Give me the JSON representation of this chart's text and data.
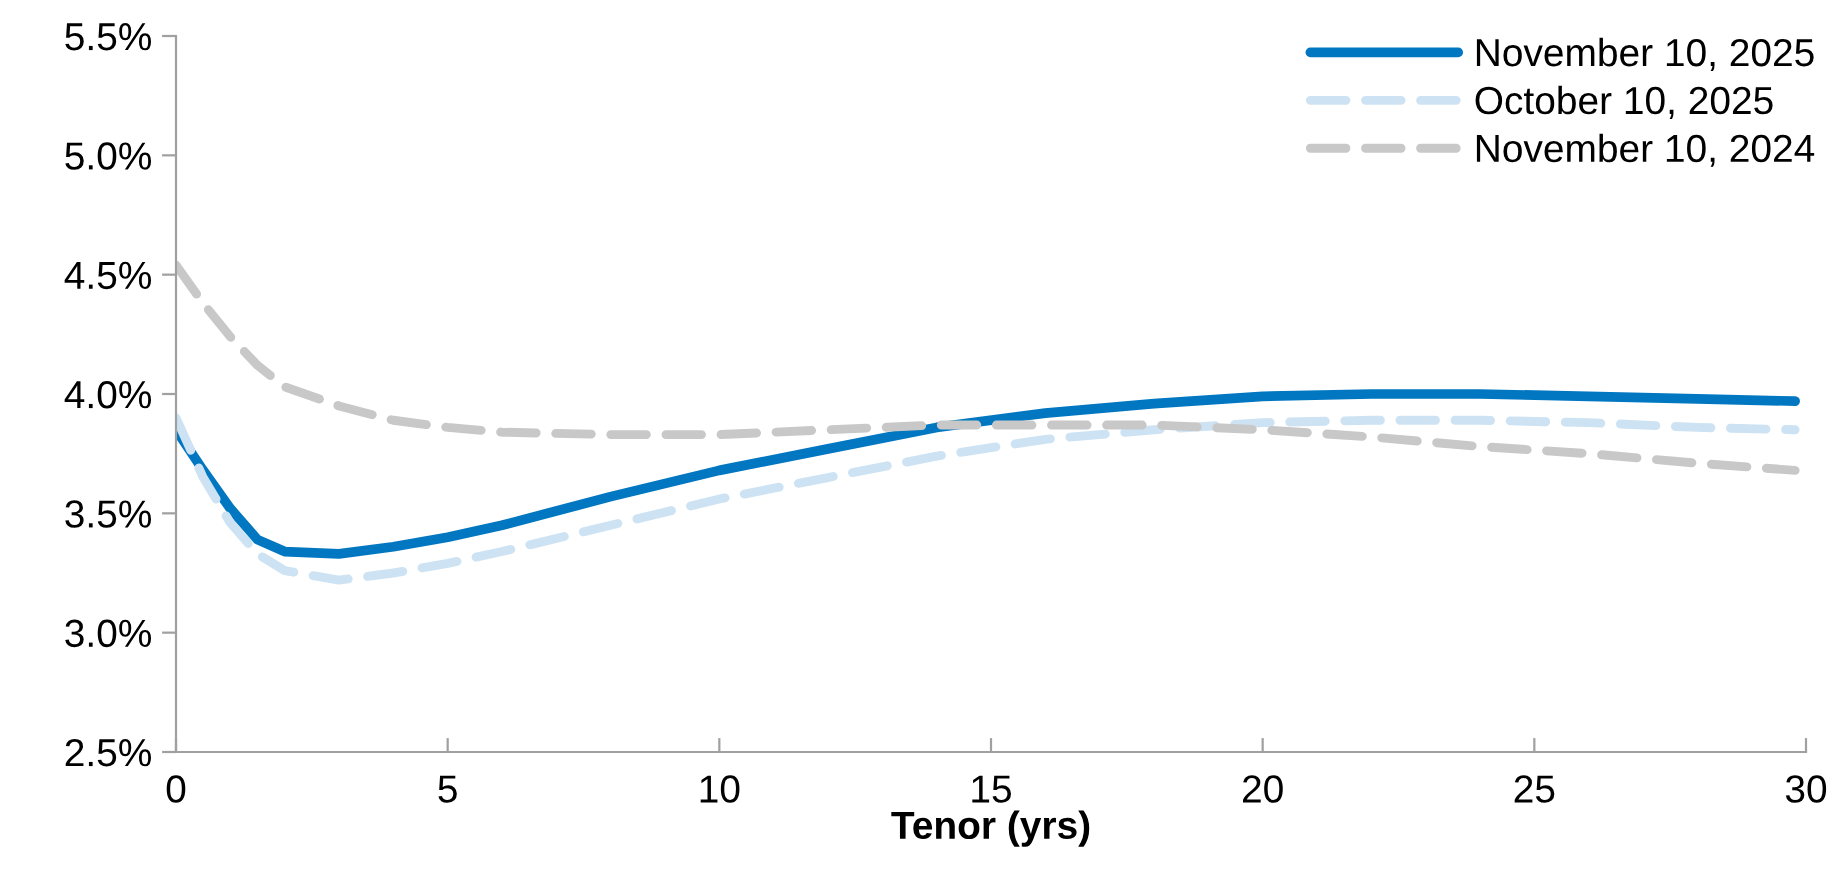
{
  "chart_data": {
    "type": "line",
    "xlabel": "Tenor (yrs)",
    "x": [
      0,
      0.5,
      1,
      1.5,
      2,
      3,
      4,
      5,
      6,
      8,
      10,
      12,
      14,
      16,
      18,
      20,
      22,
      24,
      26,
      28,
      29.8
    ],
    "series": [
      {
        "name": "November 10, 2025",
        "color": "#0077c0",
        "line_style": "solid",
        "values": [
          3.85,
          3.68,
          3.52,
          3.39,
          3.34,
          3.33,
          3.36,
          3.4,
          3.45,
          3.57,
          3.68,
          3.77,
          3.86,
          3.92,
          3.96,
          3.99,
          4.0,
          4.0,
          3.99,
          3.98,
          3.97
        ]
      },
      {
        "name": "October 10, 2025",
        "color": "#cde3f3",
        "line_style": "dashed",
        "values": [
          3.9,
          3.65,
          3.46,
          3.33,
          3.26,
          3.22,
          3.25,
          3.29,
          3.34,
          3.45,
          3.56,
          3.65,
          3.74,
          3.81,
          3.85,
          3.88,
          3.89,
          3.89,
          3.88,
          3.86,
          3.85
        ]
      },
      {
        "name": "November 10, 2024",
        "color": "#c8c8c8",
        "line_style": "dashed",
        "values": [
          4.54,
          4.38,
          4.24,
          4.12,
          4.03,
          3.95,
          3.89,
          3.86,
          3.84,
          3.83,
          3.83,
          3.85,
          3.87,
          3.87,
          3.87,
          3.85,
          3.82,
          3.78,
          3.75,
          3.71,
          3.68
        ]
      }
    ],
    "xlim": [
      0,
      30
    ],
    "xticks": [
      0,
      5,
      10,
      15,
      20,
      25,
      30
    ],
    "ylim": [
      2.5,
      5.5
    ],
    "yticks": [
      {
        "value": 2.5,
        "label": "2.5%"
      },
      {
        "value": 3.0,
        "label": "3.0%"
      },
      {
        "value": 3.5,
        "label": "3.5%"
      },
      {
        "value": 4.0,
        "label": "4.0%"
      },
      {
        "value": 4.5,
        "label": "4.5%"
      },
      {
        "value": 5.0,
        "label": "5.0%"
      },
      {
        "value": 5.5,
        "label": "5.5%"
      }
    ],
    "grid": false,
    "legend": "top right",
    "marker": "none"
  }
}
